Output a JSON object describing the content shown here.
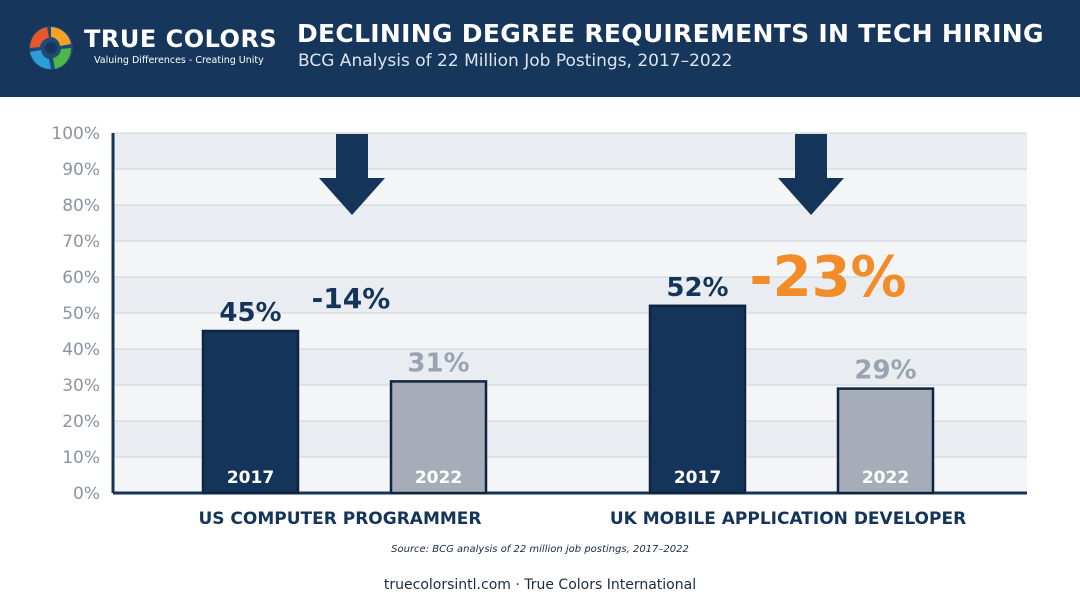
{
  "header": {
    "logo_name": "TRUE COLORS",
    "logo_tagline": "Valuing Differences - Creating Unity",
    "title": "DECLINING DEGREE REQUIREMENTS IN TECH HIRING",
    "subtitle": "BCG Analysis of 22 Million Job Postings, 2017–2022"
  },
  "colors": {
    "header_bg": "#17365b",
    "bar_2017": "#15345a",
    "bar_2022": "#a6adb9",
    "accent": "#f28c28"
  },
  "chart_data": {
    "type": "bar",
    "ylim": [
      0,
      100
    ],
    "yticks": [
      "0%",
      "10%",
      "20%",
      "30%",
      "40%",
      "50%",
      "60%",
      "70%",
      "80%",
      "90%",
      "100%"
    ],
    "grid": true,
    "groups": [
      {
        "category": "US COMPUTER PROGRAMMER",
        "bars": [
          {
            "year": "2017",
            "value": 45,
            "label": "45%"
          },
          {
            "year": "2022",
            "value": 31,
            "label": "31%"
          }
        ],
        "change_label": "-14%"
      },
      {
        "category": "UK MOBILE APPLICATION DEVELOPER",
        "bars": [
          {
            "year": "2017",
            "value": 52,
            "label": "52%"
          },
          {
            "year": "2022",
            "value": 29,
            "label": "29%"
          }
        ],
        "change_label": "-23%"
      }
    ]
  },
  "source": "Source: BCG analysis of 22 million job postings, 2017–2022",
  "footer": "truecolorsintl.com · True Colors International"
}
